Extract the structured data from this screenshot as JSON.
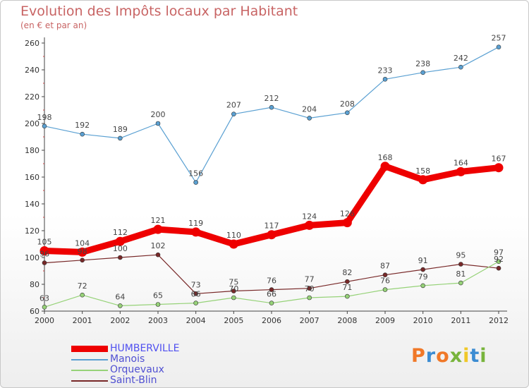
{
  "header": {
    "title": "Evolution des Impôts locaux par Habitant",
    "subtitle": "(en € et par an)"
  },
  "logo": {
    "text": "Proxiti",
    "letters": [
      {
        "ch": "P",
        "color": "#f07828"
      },
      {
        "ch": "r",
        "color": "#3c8cd2"
      },
      {
        "ch": "o",
        "color": "#f07828"
      },
      {
        "ch": "x",
        "color": "#78b43c"
      },
      {
        "ch": "i",
        "color": "#f0c828"
      },
      {
        "ch": "t",
        "color": "#3c8cd2"
      },
      {
        "ch": "i",
        "color": "#78b43c"
      }
    ]
  },
  "chart_data": {
    "type": "line",
    "x": [
      "2000",
      "2001",
      "2002",
      "2003",
      "2004",
      "2005",
      "2006",
      "2007",
      "2008",
      "2009",
      "2010",
      "2011",
      "2012"
    ],
    "ylim": [
      60,
      260
    ],
    "yticks": [
      60,
      80,
      100,
      120,
      140,
      160,
      180,
      200,
      220,
      240,
      260
    ],
    "grid": false,
    "legend_position": "bottom-left",
    "series": [
      {
        "name": "HUMBERVILLE",
        "color": "#ee0000",
        "line_width": 9,
        "values": [
          105,
          104,
          112,
          121,
          119,
          110,
          117,
          124,
          126,
          168,
          158,
          164,
          167
        ],
        "labels": [
          "105",
          "104",
          "112",
          "121",
          "119",
          "110",
          "117",
          "124",
          "126",
          "168",
          "158",
          "164",
          "167"
        ]
      },
      {
        "name": "Manois",
        "color": "#5aa0d2",
        "line_width": 1.2,
        "values": [
          198,
          192,
          189,
          200,
          156,
          207,
          212,
          204,
          208,
          233,
          238,
          242,
          257
        ],
        "labels": [
          "198",
          "192",
          "189",
          "200",
          "156",
          "207",
          "212",
          "204",
          "208",
          "233",
          "238",
          "242",
          "257"
        ]
      },
      {
        "name": "Orquevaux",
        "color": "#96d278",
        "line_width": 1.2,
        "values": [
          63,
          72,
          64,
          65,
          66,
          70,
          66,
          70,
          71,
          76,
          79,
          81,
          97
        ],
        "labels": [
          "63",
          "72",
          "64",
          "65",
          "66",
          "70",
          "66",
          "70",
          "71",
          "76",
          "79",
          "81",
          "97"
        ]
      },
      {
        "name": "Saint-Blin",
        "color": "#782828",
        "line_width": 1.2,
        "values": [
          96,
          98,
          100,
          102,
          73,
          75,
          76,
          77,
          82,
          87,
          91,
          95,
          92
        ],
        "labels": [
          "96",
          "98",
          "100",
          "102",
          "73",
          "75",
          "76",
          "77",
          "82",
          "87",
          "91",
          "95",
          "92"
        ]
      }
    ]
  }
}
